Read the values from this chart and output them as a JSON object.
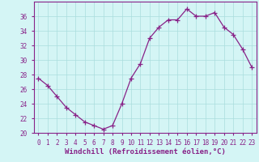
{
  "x": [
    0,
    1,
    2,
    3,
    4,
    5,
    6,
    7,
    8,
    9,
    10,
    11,
    12,
    13,
    14,
    15,
    16,
    17,
    18,
    19,
    20,
    21,
    22,
    23
  ],
  "y": [
    27.5,
    26.5,
    25.0,
    23.5,
    22.5,
    21.5,
    21.0,
    20.5,
    21.0,
    24.0,
    27.5,
    29.5,
    33.0,
    34.5,
    35.5,
    35.5,
    37.0,
    36.0,
    36.0,
    36.5,
    34.5,
    33.5,
    31.5,
    29.0
  ],
  "line_color": "#882288",
  "marker": "+",
  "markersize": 4,
  "bg_color": "#d4f5f5",
  "grid_color": "#aadddd",
  "xlabel": "Windchill (Refroidissement éolien,°C)",
  "ylabel": "",
  "title": "",
  "xlim": [
    -0.5,
    23.5
  ],
  "ylim": [
    20,
    38
  ],
  "yticks": [
    20,
    22,
    24,
    26,
    28,
    30,
    32,
    34,
    36
  ],
  "xtick_labels": [
    "0",
    "1",
    "2",
    "3",
    "4",
    "5",
    "6",
    "7",
    "8",
    "9",
    "10",
    "11",
    "12",
    "13",
    "14",
    "15",
    "16",
    "17",
    "18",
    "19",
    "20",
    "21",
    "22",
    "23"
  ],
  "tick_color": "#882288",
  "axis_color": "#882288",
  "label_fontsize": 6.5,
  "tick_fontsize": 5.5
}
